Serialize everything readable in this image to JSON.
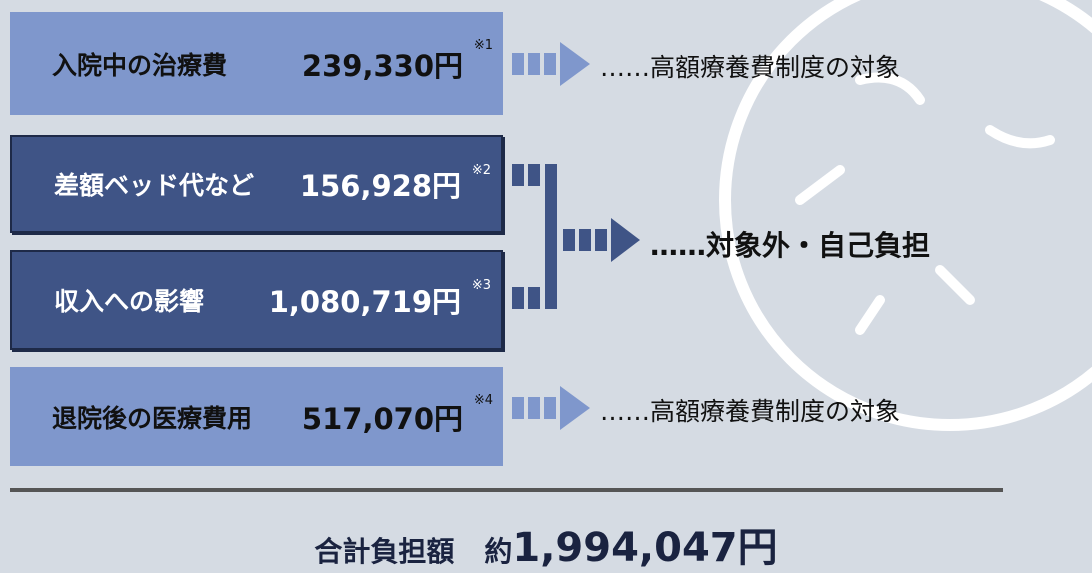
{
  "items": [
    {
      "label": "入院中の治療費",
      "amount": "239,330円",
      "note": "※1"
    },
    {
      "label": "差額ベッド代など",
      "amount": "156,928円",
      "note": "※2"
    },
    {
      "label": "収入への影響",
      "amount": "1,080,719円",
      "note": "※3"
    },
    {
      "label": "退院後の医療費用",
      "amount": "517,070円",
      "note": "※4"
    }
  ],
  "results": [
    "……高額療養費制度の対象",
    "……対象外・自己負担",
    "……高額療養費制度の対象"
  ],
  "total": {
    "label": "合計負担額",
    "prefix": "約",
    "amount": "1,994,047円"
  }
}
